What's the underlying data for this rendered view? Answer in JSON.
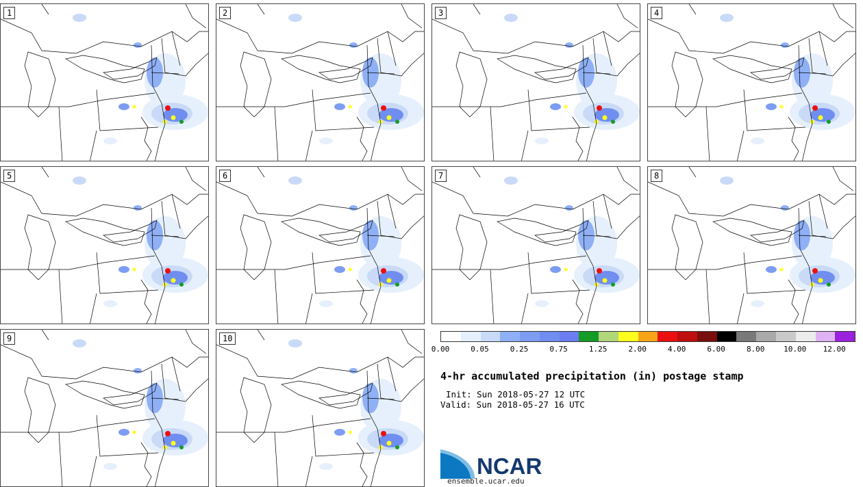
{
  "members": [
    "1",
    "2",
    "3",
    "4",
    "5",
    "6",
    "7",
    "8",
    "9",
    "10"
  ],
  "legend": {
    "colors": [
      "#ffffff",
      "#e6f0fc",
      "#c9daf8",
      "#8fb0f5",
      "#7d9df2",
      "#6f8ef0",
      "#6b7df0",
      "#139c26",
      "#b2d67a",
      "#ffff1e",
      "#f7a516",
      "#ea1010",
      "#be0e0e",
      "#780e0e",
      "#000000",
      "#797979",
      "#a9a9a9",
      "#c9c9c9",
      "#ececec",
      "#dfb3f3",
      "#9b22dc"
    ],
    "ticks": [
      "0.00",
      "0.05",
      "0.25",
      "0.75",
      "1.25",
      "2.00",
      "4.00",
      "6.00",
      "8.00",
      "10.00",
      "12.00"
    ]
  },
  "title": "4-hr accumulated precipitation (in) postage stamp",
  "init": "Init: Sun 2018-05-27 12 UTC",
  "valid": "Valid: Sun 2018-05-27 16 UTC",
  "logo_text": "NCAR",
  "site": "ensemble.ucar.edu"
}
